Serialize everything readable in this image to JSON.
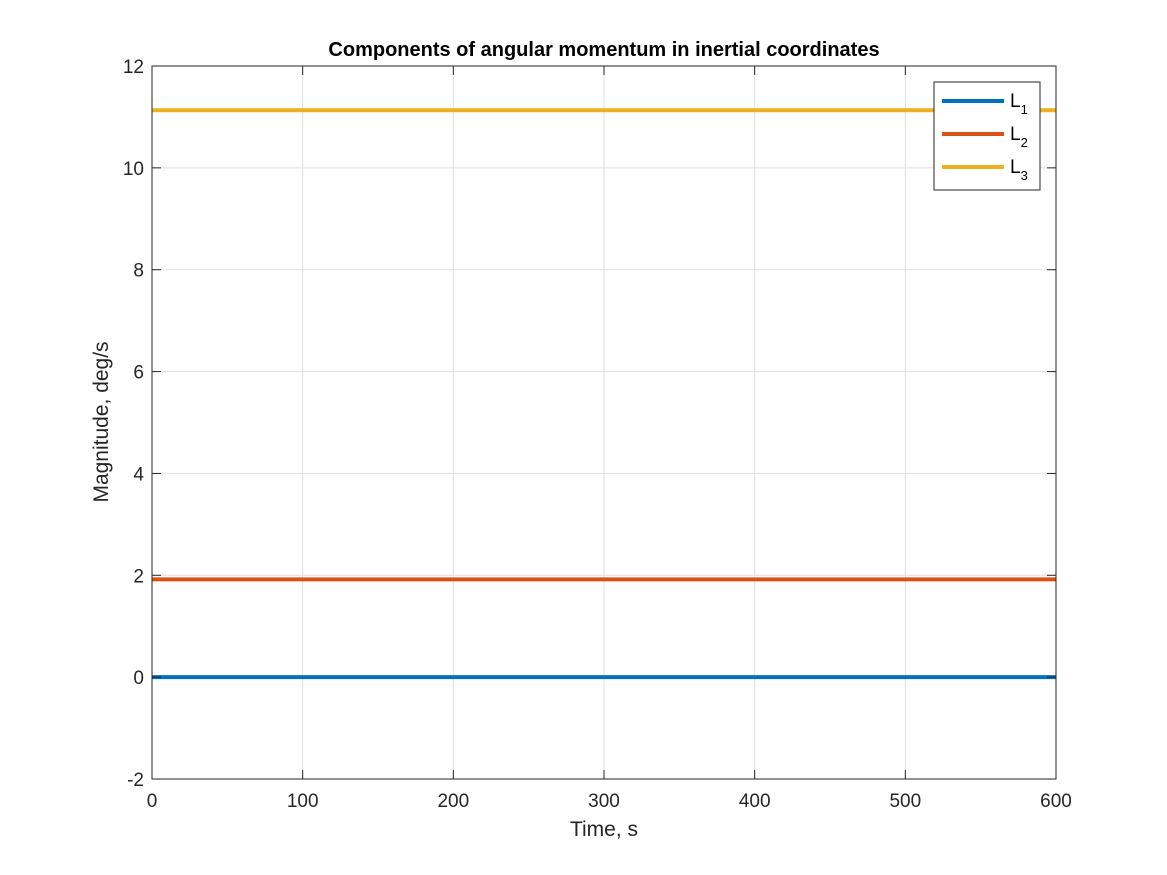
{
  "chart_data": {
    "type": "line",
    "title": "Components of angular momentum in inertial coordinates",
    "xlabel": "Time, s",
    "ylabel": "Magnitude, deg/s",
    "xlim": [
      0,
      600
    ],
    "ylim": [
      -2,
      12
    ],
    "xticks": [
      0,
      100,
      200,
      300,
      400,
      500,
      600
    ],
    "xtick_labels": [
      "0",
      "100",
      "200",
      "300",
      "400",
      "500",
      "600"
    ],
    "yticks": [
      -2,
      0,
      2,
      4,
      6,
      8,
      10,
      12
    ],
    "ytick_labels": [
      "-2",
      "0",
      "2",
      "4",
      "6",
      "8",
      "10",
      "12"
    ],
    "grid": true,
    "legend_position": "top-right",
    "series": [
      {
        "name": "L1",
        "label_base": "L",
        "label_sub": "1",
        "color": "#0072BD",
        "x": [
          0,
          600
        ],
        "y": [
          0,
          0
        ]
      },
      {
        "name": "L2",
        "label_base": "L",
        "label_sub": "2",
        "color": "#D95319",
        "x": [
          0,
          600
        ],
        "y": [
          1.92,
          1.92
        ]
      },
      {
        "name": "L3",
        "label_base": "L",
        "label_sub": "3",
        "color": "#EDB120",
        "x": [
          0,
          600
        ],
        "y": [
          11.13,
          11.13
        ]
      }
    ]
  }
}
